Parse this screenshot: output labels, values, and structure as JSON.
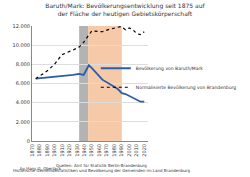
{
  "chart_data": {
    "type": "line",
    "title": "Baruth/Mark: Bevölkerungsentwicklung seit 1875 auf der Fläche der heutigen Gebietskörperschaft",
    "series": [
      {
        "name": "Bevölkerung von Baruth/Mark",
        "color": "#2a5ca8",
        "line_style": "solid",
        "x": [
          1875,
          1890,
          1910,
          1925,
          1933,
          1939,
          1946,
          1950,
          1964,
          1971,
          1981,
          1985,
          1990,
          1995,
          2000,
          2005,
          2010,
          2015,
          2020
        ],
        "values": [
          6500,
          6600,
          6800,
          6900,
          7000,
          6900,
          7900,
          7600,
          6400,
          6100,
          5600,
          5400,
          5000,
          4900,
          4700,
          4500,
          4300,
          4100,
          4100
        ]
      },
      {
        "name": "Normalisierte Bevölkerung von Brandenburg",
        "color": "#000000",
        "line_style": "dot",
        "x": [
          1875,
          1890,
          1900,
          1910,
          1925,
          1933,
          1939,
          1946,
          1950,
          1964,
          1971,
          1981,
          1985,
          1989,
          1995,
          2000,
          2005,
          2010,
          2015,
          2020
        ],
        "values": [
          6500,
          7300,
          8000,
          9000,
          9500,
          9800,
          10300,
          11000,
          11500,
          11400,
          11600,
          11800,
          11900,
          11950,
          11600,
          11800,
          11600,
          11200,
          11100,
          11400
        ]
      }
    ],
    "spans": [
      {
        "start": 1933,
        "end": 1945,
        "color": "#b3b3b3"
      },
      {
        "start": 1945,
        "end": 1990,
        "color": "#f6c9a8"
      }
    ],
    "xlim": [
      1870,
      2025
    ],
    "xticks": [
      1870,
      1880,
      1890,
      1900,
      1910,
      1920,
      1930,
      1940,
      1950,
      1960,
      1970,
      1980,
      1990,
      2000,
      2010,
      2020
    ],
    "ylim": [
      0,
      12000
    ],
    "yticks": [
      0,
      {
        "value": 2000,
        "label": "2.000"
      },
      {
        "value": 4000,
        "label": "4.000"
      },
      {
        "value": 6000,
        "label": "6.000"
      },
      {
        "value": 8000,
        "label": "8.000"
      },
      {
        "value": 10000,
        "label": "10.000"
      },
      {
        "value": 12000,
        "label": "12.000"
      }
    ],
    "grid": true,
    "legend": "right",
    "annotations": [
      "Quellen: Amt für Statistik Berlin-Brandenburg",
      "Historische Gemeindestatistiken und Bevölkerung der Gemeinden im Land Brandenburg",
      "by Hans G. Oberlack"
    ]
  }
}
